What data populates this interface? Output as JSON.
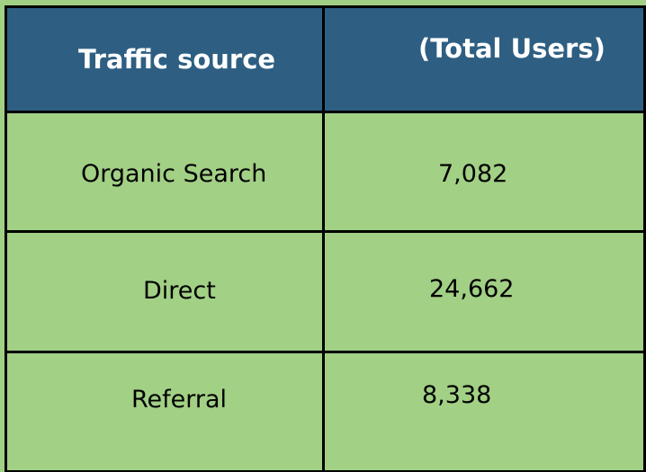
{
  "table": {
    "headers": [
      "Traffic source",
      "(Total Users)"
    ],
    "rows": [
      {
        "source": "Organic Search",
        "users": "7,082"
      },
      {
        "source": "Direct",
        "users": "24,662"
      },
      {
        "source": "Referral",
        "users": "8,338"
      }
    ]
  },
  "colors": {
    "header_background": "#2e5f82",
    "header_text": "#ffffff",
    "cell_background": "#a2d085",
    "border": "#000000"
  }
}
